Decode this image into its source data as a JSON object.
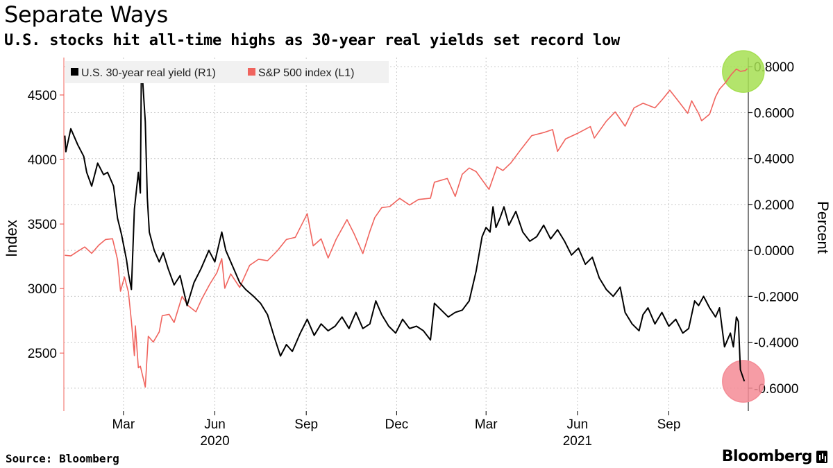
{
  "header": {
    "title": "Separate Ways",
    "subtitle": "U.S. stocks hit all-time highs as 30-year real yields set record low"
  },
  "footer": {
    "source": "Source: Bloomberg",
    "brand": "Bloomberg"
  },
  "chart_data": {
    "type": "line",
    "title": "Separate Ways",
    "subtitle": "U.S. stocks hit all-time highs as 30-year real yields set record low",
    "left_axis": {
      "label": "Index",
      "ticks": [
        2500,
        3000,
        3500,
        4000,
        4500
      ],
      "range": [
        2050,
        4790
      ]
    },
    "right_axis": {
      "label": "Percent",
      "ticks": [
        -0.6,
        -0.4,
        -0.2,
        0.0,
        0.2,
        0.4,
        0.6,
        0.8
      ],
      "tick_labels": [
        "-0.6000",
        "-0.4000",
        "-0.2000",
        "0.0000",
        "0.2000",
        "0.4000",
        "0.6000",
        "0.8000"
      ],
      "range": [
        -0.7,
        0.84
      ]
    },
    "x_axis": {
      "range": [
        "2020-01-01",
        "2021-11-20"
      ],
      "month_ticks": [
        {
          "date": "2020-03-01",
          "label": "Mar"
        },
        {
          "date": "2020-06-01",
          "label": "Jun"
        },
        {
          "date": "2020-09-01",
          "label": "Sep"
        },
        {
          "date": "2020-12-01",
          "label": "Dec"
        },
        {
          "date": "2021-03-01",
          "label": "Mar"
        },
        {
          "date": "2021-06-01",
          "label": "Jun"
        },
        {
          "date": "2021-09-01",
          "label": "Sep"
        }
      ],
      "year_labels": [
        {
          "date": "2020-06-01",
          "label": "2020"
        },
        {
          "date": "2021-06-01",
          "label": "2021"
        }
      ]
    },
    "grid": true,
    "legend_position": "top-left",
    "series": [
      {
        "name": "U.S. 30-year real yield (R1)",
        "axis": "right",
        "color": "#000000",
        "points": [
          [
            "2020-01-02",
            0.5
          ],
          [
            "2020-01-03",
            0.43
          ],
          [
            "2020-01-08",
            0.53
          ],
          [
            "2020-01-15",
            0.46
          ],
          [
            "2020-01-21",
            0.41
          ],
          [
            "2020-01-24",
            0.34
          ],
          [
            "2020-01-29",
            0.28
          ],
          [
            "2020-02-04",
            0.38
          ],
          [
            "2020-02-10",
            0.33
          ],
          [
            "2020-02-14",
            0.34
          ],
          [
            "2020-02-20",
            0.28
          ],
          [
            "2020-02-24",
            0.14
          ],
          [
            "2020-02-28",
            0.07
          ],
          [
            "2020-03-04",
            -0.04
          ],
          [
            "2020-03-06",
            -0.1
          ],
          [
            "2020-03-09",
            -0.17
          ],
          [
            "2020-03-12",
            0.18
          ],
          [
            "2020-03-16",
            0.34
          ],
          [
            "2020-03-18",
            0.25
          ],
          [
            "2020-03-19",
            0.77
          ],
          [
            "2020-03-20",
            0.76
          ],
          [
            "2020-03-23",
            0.56
          ],
          [
            "2020-03-25",
            0.23
          ],
          [
            "2020-03-27",
            0.08
          ],
          [
            "2020-04-01",
            0.0
          ],
          [
            "2020-04-06",
            -0.05
          ],
          [
            "2020-04-10",
            -0.01
          ],
          [
            "2020-04-15",
            -0.08
          ],
          [
            "2020-04-21",
            -0.15
          ],
          [
            "2020-04-27",
            -0.11
          ],
          [
            "2020-05-04",
            -0.24
          ],
          [
            "2020-05-11",
            -0.14
          ],
          [
            "2020-05-18",
            -0.08
          ],
          [
            "2020-05-26",
            0.0
          ],
          [
            "2020-06-01",
            -0.05
          ],
          [
            "2020-06-08",
            0.08
          ],
          [
            "2020-06-12",
            0.0
          ],
          [
            "2020-06-19",
            -0.07
          ],
          [
            "2020-06-26",
            -0.14
          ],
          [
            "2020-07-02",
            -0.17
          ],
          [
            "2020-07-10",
            -0.2
          ],
          [
            "2020-07-17",
            -0.23
          ],
          [
            "2020-07-24",
            -0.28
          ],
          [
            "2020-07-31",
            -0.38
          ],
          [
            "2020-08-06",
            -0.46
          ],
          [
            "2020-08-12",
            -0.41
          ],
          [
            "2020-08-18",
            -0.44
          ],
          [
            "2020-08-26",
            -0.36
          ],
          [
            "2020-09-02",
            -0.3
          ],
          [
            "2020-09-09",
            -0.37
          ],
          [
            "2020-09-16",
            -0.32
          ],
          [
            "2020-09-23",
            -0.35
          ],
          [
            "2020-09-30",
            -0.33
          ],
          [
            "2020-10-07",
            -0.29
          ],
          [
            "2020-10-14",
            -0.34
          ],
          [
            "2020-10-21",
            -0.27
          ],
          [
            "2020-10-28",
            -0.34
          ],
          [
            "2020-11-04",
            -0.32
          ],
          [
            "2020-11-10",
            -0.22
          ],
          [
            "2020-11-16",
            -0.28
          ],
          [
            "2020-11-23",
            -0.33
          ],
          [
            "2020-11-30",
            -0.36
          ],
          [
            "2020-12-07",
            -0.3
          ],
          [
            "2020-12-14",
            -0.34
          ],
          [
            "2020-12-21",
            -0.33
          ],
          [
            "2020-12-28",
            -0.35
          ],
          [
            "2021-01-04",
            -0.39
          ],
          [
            "2021-01-08",
            -0.23
          ],
          [
            "2021-01-15",
            -0.26
          ],
          [
            "2021-01-22",
            -0.29
          ],
          [
            "2021-01-29",
            -0.27
          ],
          [
            "2021-02-05",
            -0.26
          ],
          [
            "2021-02-12",
            -0.22
          ],
          [
            "2021-02-19",
            -0.09
          ],
          [
            "2021-02-25",
            0.06
          ],
          [
            "2021-03-01",
            0.1
          ],
          [
            "2021-03-05",
            0.08
          ],
          [
            "2021-03-08",
            0.19
          ],
          [
            "2021-03-11",
            0.1
          ],
          [
            "2021-03-15",
            0.14
          ],
          [
            "2021-03-19",
            0.19
          ],
          [
            "2021-03-24",
            0.11
          ],
          [
            "2021-03-31",
            0.17
          ],
          [
            "2021-04-07",
            0.08
          ],
          [
            "2021-04-14",
            0.04
          ],
          [
            "2021-04-21",
            0.06
          ],
          [
            "2021-04-28",
            0.11
          ],
          [
            "2021-05-05",
            0.05
          ],
          [
            "2021-05-12",
            0.09
          ],
          [
            "2021-05-19",
            0.04
          ],
          [
            "2021-05-26",
            -0.02
          ],
          [
            "2021-06-02",
            0.01
          ],
          [
            "2021-06-09",
            -0.06
          ],
          [
            "2021-06-16",
            -0.03
          ],
          [
            "2021-06-23",
            -0.12
          ],
          [
            "2021-06-30",
            -0.17
          ],
          [
            "2021-07-07",
            -0.2
          ],
          [
            "2021-07-14",
            -0.16
          ],
          [
            "2021-07-19",
            -0.27
          ],
          [
            "2021-07-26",
            -0.32
          ],
          [
            "2021-08-02",
            -0.35
          ],
          [
            "2021-08-06",
            -0.28
          ],
          [
            "2021-08-11",
            -0.25
          ],
          [
            "2021-08-18",
            -0.32
          ],
          [
            "2021-08-25",
            -0.27
          ],
          [
            "2021-09-01",
            -0.33
          ],
          [
            "2021-09-08",
            -0.3
          ],
          [
            "2021-09-15",
            -0.36
          ],
          [
            "2021-09-21",
            -0.34
          ],
          [
            "2021-09-27",
            -0.22
          ],
          [
            "2021-10-01",
            -0.24
          ],
          [
            "2021-10-06",
            -0.2
          ],
          [
            "2021-10-12",
            -0.25
          ],
          [
            "2021-10-18",
            -0.29
          ],
          [
            "2021-10-22",
            -0.25
          ],
          [
            "2021-10-27",
            -0.42
          ],
          [
            "2021-11-02",
            -0.36
          ],
          [
            "2021-11-05",
            -0.42
          ],
          [
            "2021-11-08",
            -0.29
          ],
          [
            "2021-11-10",
            -0.31
          ],
          [
            "2021-11-12",
            -0.52
          ],
          [
            "2021-11-16",
            -0.57
          ]
        ]
      },
      {
        "name": "S&P 500 index (L1)",
        "axis": "left",
        "color": "#f0645e",
        "points": [
          [
            "2020-01-02",
            3258
          ],
          [
            "2020-01-08",
            3253
          ],
          [
            "2020-01-15",
            3289
          ],
          [
            "2020-01-22",
            3322
          ],
          [
            "2020-01-29",
            3273
          ],
          [
            "2020-02-05",
            3335
          ],
          [
            "2020-02-12",
            3380
          ],
          [
            "2020-02-19",
            3386
          ],
          [
            "2020-02-24",
            3225
          ],
          [
            "2020-02-27",
            2979
          ],
          [
            "2020-03-02",
            3090
          ],
          [
            "2020-03-06",
            2972
          ],
          [
            "2020-03-09",
            2747
          ],
          [
            "2020-03-12",
            2480
          ],
          [
            "2020-03-13",
            2711
          ],
          [
            "2020-03-16",
            2386
          ],
          [
            "2020-03-18",
            2398
          ],
          [
            "2020-03-23",
            2237
          ],
          [
            "2020-03-26",
            2630
          ],
          [
            "2020-03-31",
            2585
          ],
          [
            "2020-04-06",
            2664
          ],
          [
            "2020-04-09",
            2790
          ],
          [
            "2020-04-16",
            2800
          ],
          [
            "2020-04-21",
            2737
          ],
          [
            "2020-04-29",
            2939
          ],
          [
            "2020-05-05",
            2868
          ],
          [
            "2020-05-13",
            2820
          ],
          [
            "2020-05-19",
            2922
          ],
          [
            "2020-05-27",
            3036
          ],
          [
            "2020-06-03",
            3122
          ],
          [
            "2020-06-08",
            3232
          ],
          [
            "2020-06-11",
            3002
          ],
          [
            "2020-06-17",
            3113
          ],
          [
            "2020-06-26",
            3009
          ],
          [
            "2020-07-06",
            3180
          ],
          [
            "2020-07-15",
            3227
          ],
          [
            "2020-07-24",
            3216
          ],
          [
            "2020-08-03",
            3294
          ],
          [
            "2020-08-12",
            3380
          ],
          [
            "2020-08-21",
            3397
          ],
          [
            "2020-09-02",
            3580
          ],
          [
            "2020-09-08",
            3331
          ],
          [
            "2020-09-16",
            3385
          ],
          [
            "2020-09-23",
            3237
          ],
          [
            "2020-10-01",
            3380
          ],
          [
            "2020-10-12",
            3534
          ],
          [
            "2020-10-19",
            3427
          ],
          [
            "2020-10-28",
            3271
          ],
          [
            "2020-11-04",
            3443
          ],
          [
            "2020-11-09",
            3550
          ],
          [
            "2020-11-16",
            3627
          ],
          [
            "2020-11-24",
            3635
          ],
          [
            "2020-12-04",
            3699
          ],
          [
            "2020-12-14",
            3647
          ],
          [
            "2020-12-23",
            3690
          ],
          [
            "2021-01-04",
            3700
          ],
          [
            "2021-01-08",
            3824
          ],
          [
            "2021-01-21",
            3853
          ],
          [
            "2021-01-29",
            3714
          ],
          [
            "2021-02-05",
            3886
          ],
          [
            "2021-02-12",
            3934
          ],
          [
            "2021-02-19",
            3906
          ],
          [
            "2021-03-04",
            3768
          ],
          [
            "2021-03-12",
            3943
          ],
          [
            "2021-03-18",
            3915
          ],
          [
            "2021-03-26",
            3974
          ],
          [
            "2021-04-05",
            4077
          ],
          [
            "2021-04-16",
            4185
          ],
          [
            "2021-04-29",
            4211
          ],
          [
            "2021-05-07",
            4232
          ],
          [
            "2021-05-12",
            4063
          ],
          [
            "2021-05-20",
            4159
          ],
          [
            "2021-06-01",
            4202
          ],
          [
            "2021-06-14",
            4255
          ],
          [
            "2021-06-18",
            4166
          ],
          [
            "2021-06-30",
            4297
          ],
          [
            "2021-07-09",
            4369
          ],
          [
            "2021-07-19",
            4258
          ],
          [
            "2021-07-28",
            4400
          ],
          [
            "2021-08-06",
            4436
          ],
          [
            "2021-08-18",
            4400
          ],
          [
            "2021-08-26",
            4470
          ],
          [
            "2021-09-02",
            4537
          ],
          [
            "2021-09-10",
            4458
          ],
          [
            "2021-09-20",
            4358
          ],
          [
            "2021-09-24",
            4455
          ],
          [
            "2021-10-01",
            4357
          ],
          [
            "2021-10-04",
            4300
          ],
          [
            "2021-10-12",
            4351
          ],
          [
            "2021-10-18",
            4486
          ],
          [
            "2021-10-22",
            4545
          ],
          [
            "2021-10-28",
            4596
          ],
          [
            "2021-11-03",
            4660
          ],
          [
            "2021-11-08",
            4701
          ],
          [
            "2021-11-12",
            4683
          ],
          [
            "2021-11-17",
            4689
          ],
          [
            "2021-11-19",
            4704
          ]
        ]
      }
    ],
    "highlights": [
      {
        "series": "S&P 500 index (L1)",
        "date": "2021-11-15",
        "value": 4682,
        "color": "#a6df52"
      },
      {
        "series": "U.S. 30-year real yield (R1)",
        "date": "2021-11-15",
        "value": -0.57,
        "color": "#f48b95"
      }
    ]
  }
}
